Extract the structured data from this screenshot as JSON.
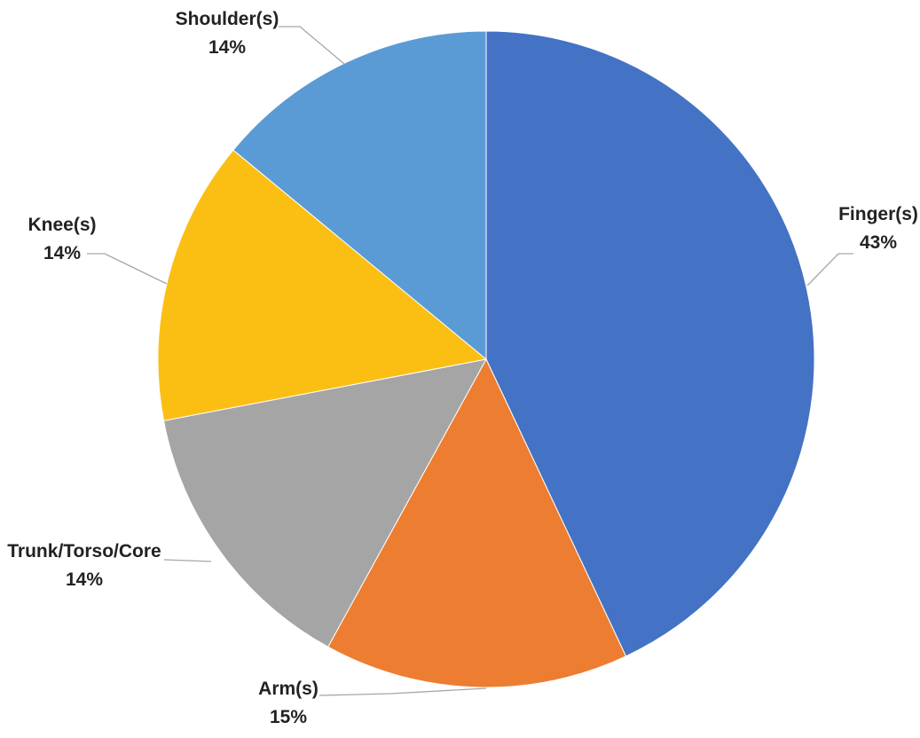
{
  "chart_data": {
    "type": "pie",
    "slices": [
      {
        "label": "Finger(s)",
        "value": 43,
        "display": "43%",
        "color": "#4472c4"
      },
      {
        "label": "Arm(s)",
        "value": 15,
        "display": "15%",
        "color": "#ed7d31"
      },
      {
        "label": "Trunk/Torso/Core",
        "value": 14,
        "display": "14%",
        "color": "#a5a5a5"
      },
      {
        "label": "Knee(s)",
        "value": 14,
        "display": "14%",
        "color": "#fbbf14"
      },
      {
        "label": "Shoulder(s)",
        "value": 14,
        "display": "14%",
        "color": "#5b9bd5"
      }
    ]
  }
}
